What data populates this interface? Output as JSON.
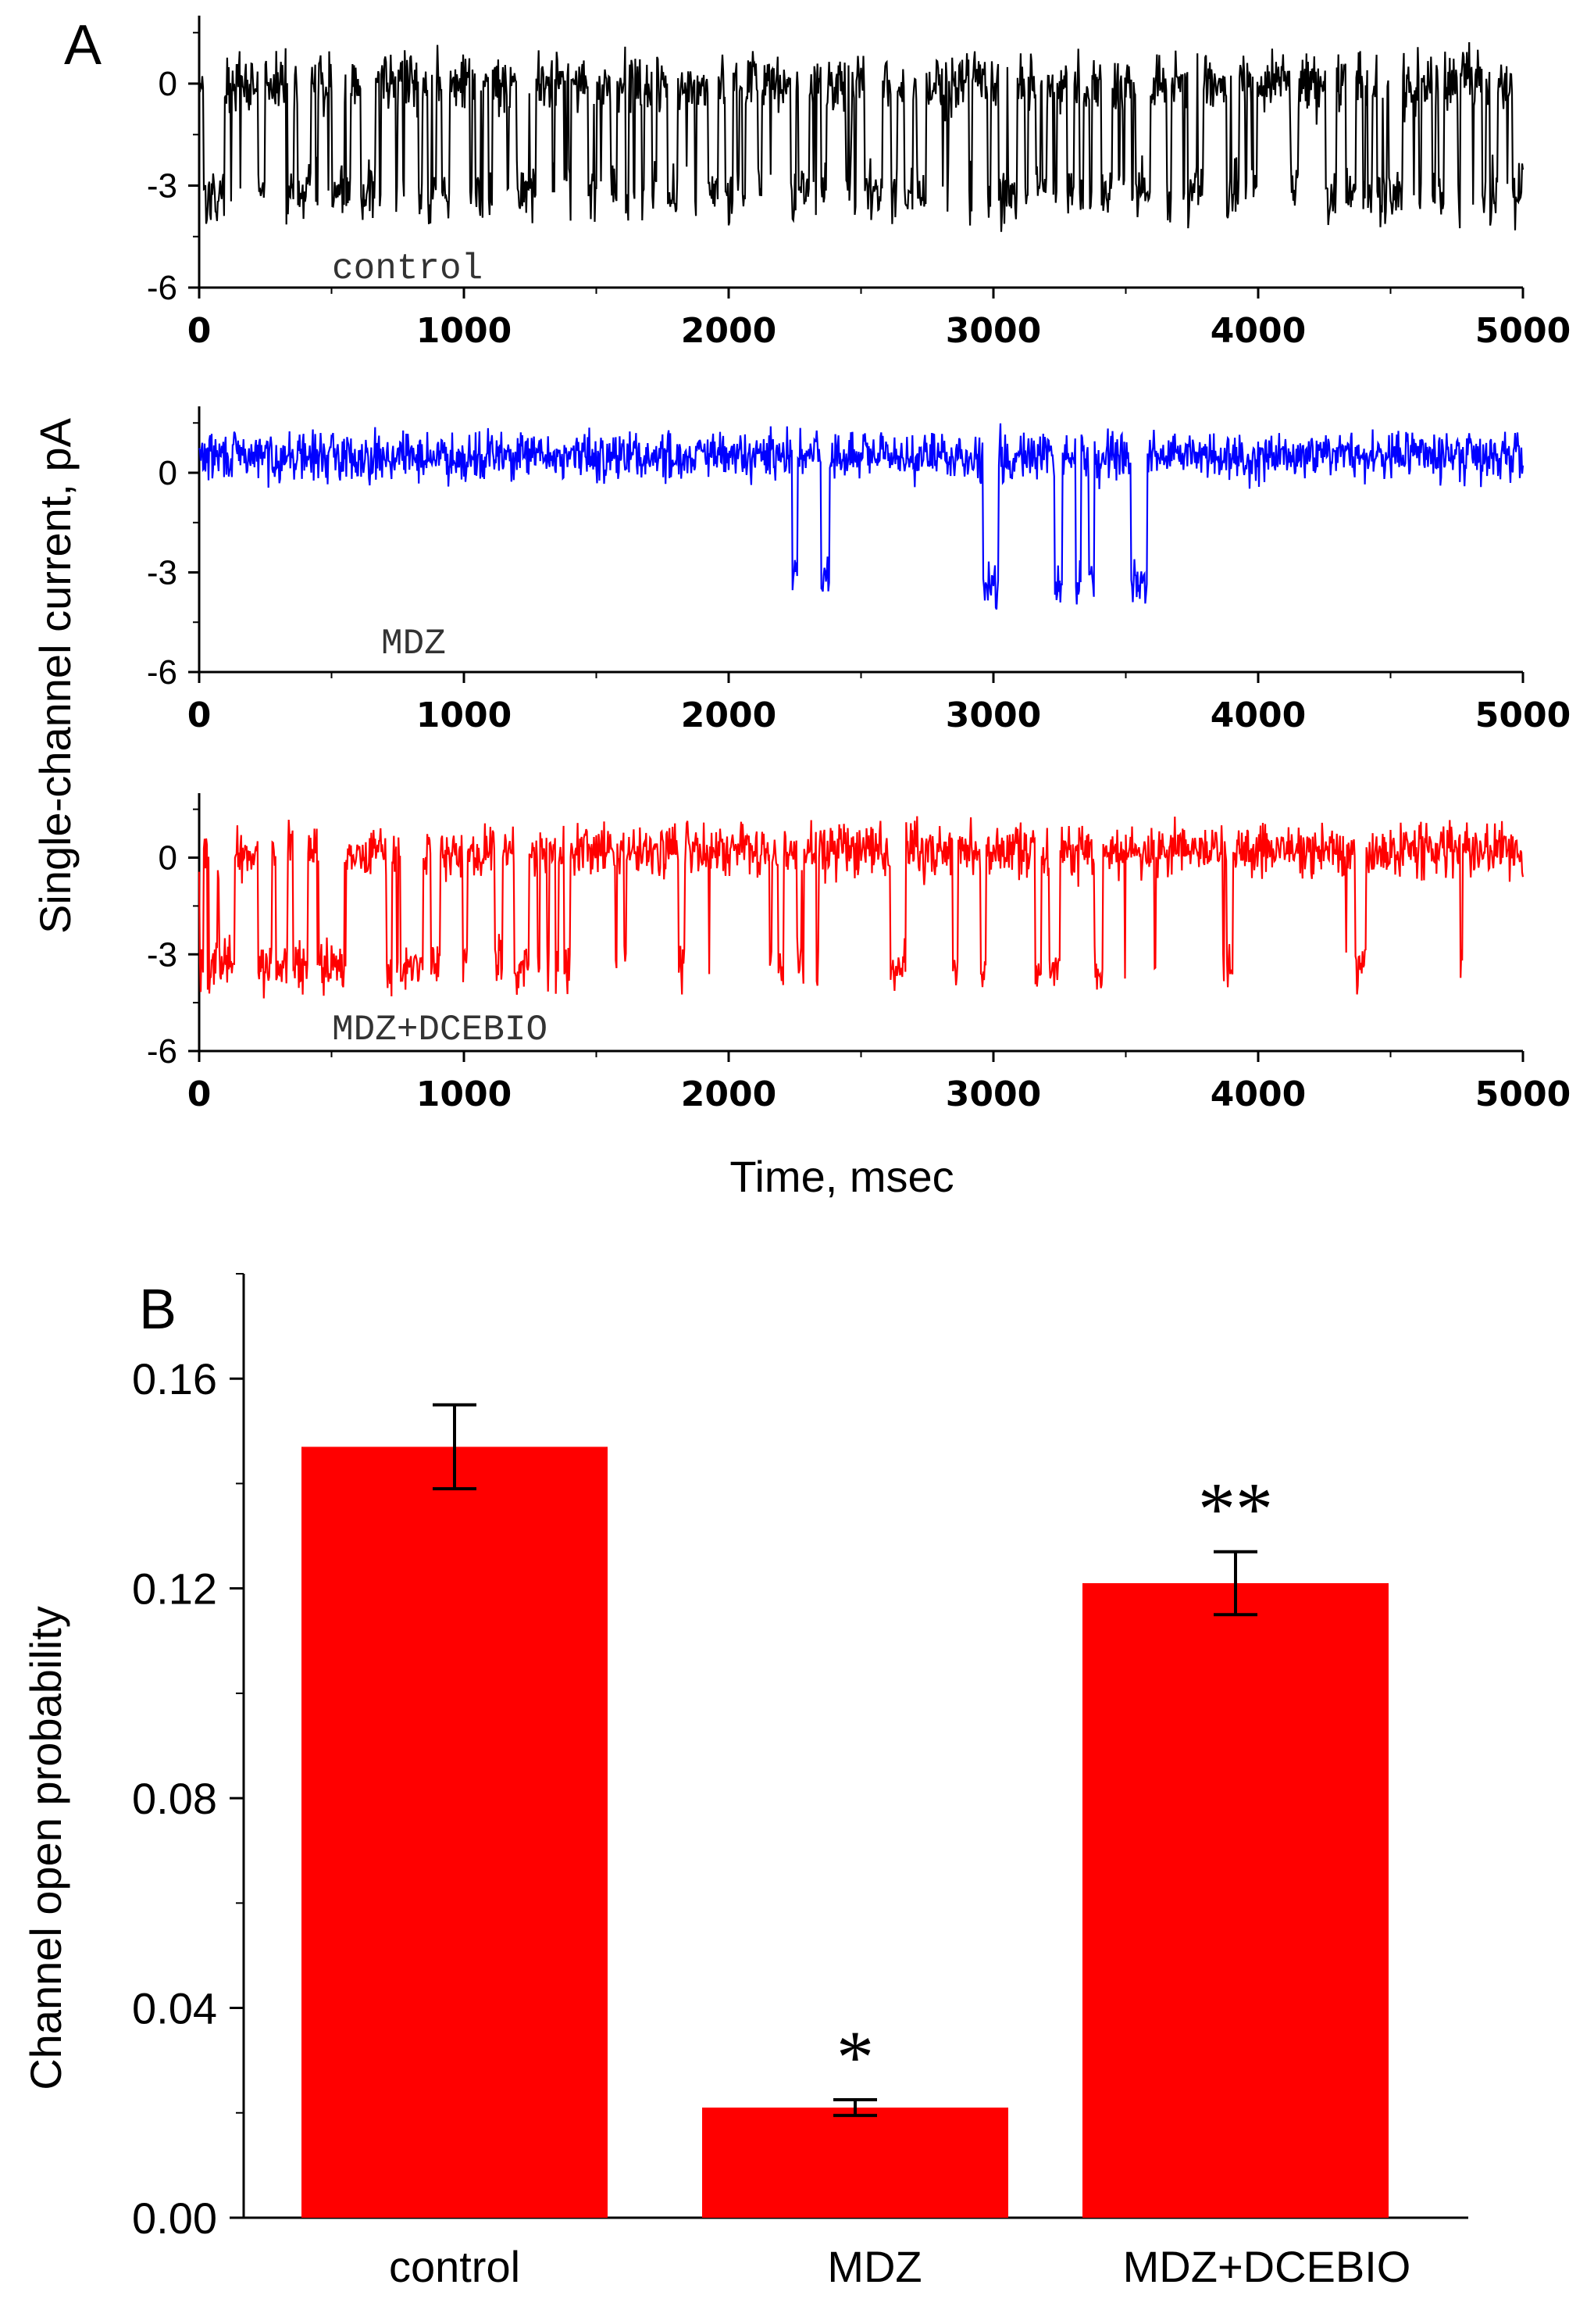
{
  "chart_data": [
    {
      "type": "line",
      "panel_label": "A",
      "ylabel": "Single-channel current, pA",
      "xlabel": "Time, msec",
      "xlim": [
        0,
        5000
      ],
      "ylim": [
        -6,
        2
      ],
      "x_ticks": [
        "0",
        "1000",
        "2000",
        "3000",
        "4000",
        "5000"
      ],
      "y_ticks": [
        "0",
        "-3",
        "-6"
      ],
      "series": [
        {
          "name": "control",
          "label": "control",
          "color": "#000000",
          "seed": 17,
          "closed_level": 0.0,
          "open_level": -3.2,
          "noise": 0.55,
          "open_probability": 0.147,
          "bursts": [
            [
              0,
              5000,
              0.42
            ]
          ]
        },
        {
          "name": "MDZ",
          "label": "MDZ",
          "color": "#0000ff",
          "seed": 29,
          "closed_level": 0.5,
          "open_level": -3.3,
          "noise": 0.45,
          "open_probability": 0.021,
          "bursts": [
            [
              2240,
              2260,
              1
            ],
            [
              2350,
              2380,
              1
            ],
            [
              2960,
              3020,
              1
            ],
            [
              3230,
              3260,
              1
            ],
            [
              3310,
              3330,
              1
            ],
            [
              3360,
              3380,
              1
            ],
            [
              3520,
              3580,
              1
            ]
          ]
        },
        {
          "name": "MDZ+DCEBIO",
          "label": "MDZ+DCEBIO",
          "color": "#ff0000",
          "seed": 43,
          "closed_level": 0.2,
          "open_level": -3.4,
          "noise": 0.5,
          "open_probability": 0.121,
          "bursts": [
            [
              0,
              1400,
              0.45
            ],
            [
              1400,
              5000,
              0.12
            ]
          ]
        }
      ]
    },
    {
      "type": "bar",
      "panel_label": "B",
      "ylabel": "Channel open probability",
      "categories": [
        "control",
        "MDZ",
        "MDZ+DCEBIO"
      ],
      "values": [
        0.147,
        0.021,
        0.121
      ],
      "errors": [
        0.008,
        0.0015,
        0.006
      ],
      "significance": [
        "",
        "*",
        "**"
      ],
      "ylim": [
        0,
        0.18
      ],
      "y_ticks": [
        "0.00",
        "0.04",
        "0.08",
        "0.12",
        "0.16"
      ],
      "bar_color": "#ff0000"
    }
  ]
}
